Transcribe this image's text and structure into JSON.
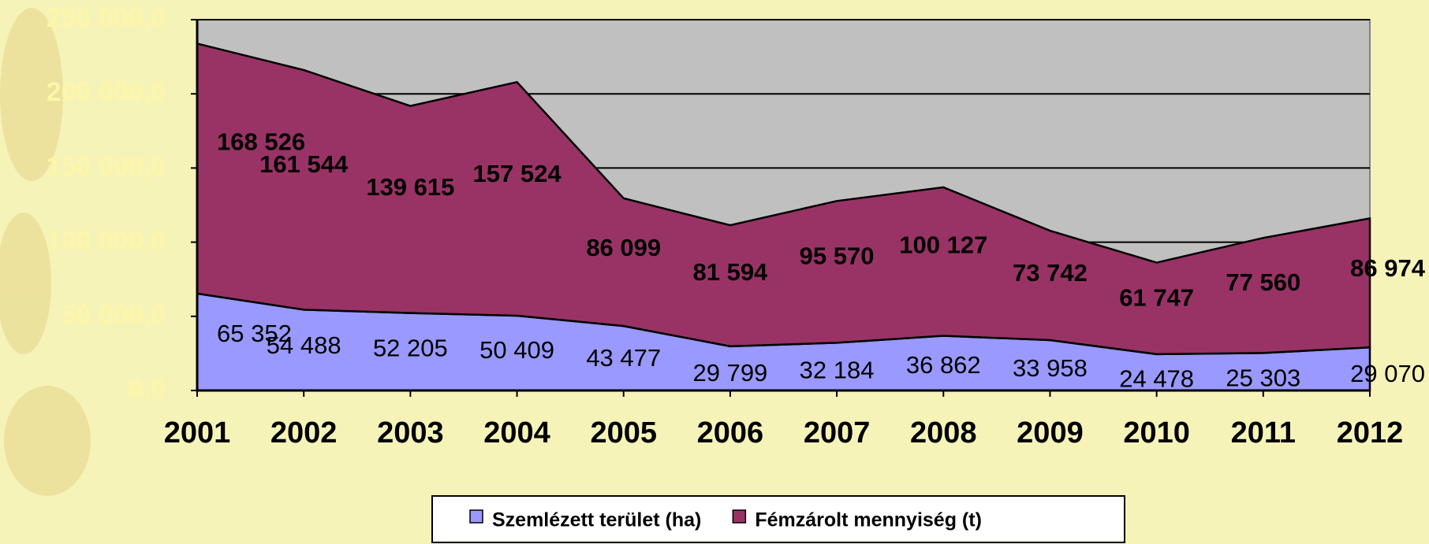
{
  "chart_data": {
    "type": "stacked_area",
    "categories": [
      "2001",
      "2002",
      "2003",
      "2004",
      "2005",
      "2006",
      "2007",
      "2008",
      "2009",
      "2010",
      "2011",
      "2012"
    ],
    "series": [
      {
        "name": "Szemlézett terület (ha)",
        "color": "#9999ff",
        "values": [
          65352,
          54488,
          52205,
          50409,
          43477,
          29799,
          32184,
          36862,
          33958,
          24478,
          25303,
          29070
        ],
        "value_labels": [
          "65 352",
          "54 488",
          "52 205",
          "50 409",
          "43 477",
          "29 799",
          "32 184",
          "36 862",
          "33 958",
          "24 478",
          "25 303",
          "29 070"
        ]
      },
      {
        "name": "Fémzárolt mennyiség (t)",
        "color": "#993366",
        "values": [
          168526,
          161544,
          139615,
          157524,
          86099,
          81594,
          95570,
          100127,
          73742,
          61747,
          77560,
          86974
        ],
        "value_labels": [
          "168 526",
          "161 544",
          "139 615",
          "157 524",
          "86 099",
          "81 594",
          "95 570",
          "100 127",
          "73 742",
          "61 747",
          "77 560",
          "86 974"
        ]
      }
    ],
    "ylim": [
      0,
      250000
    ],
    "yticks": [
      {
        "value": 0,
        "label": "0,0"
      },
      {
        "value": 50000,
        "label": "50 000,0"
      },
      {
        "value": 100000,
        "label": "100 000,0"
      },
      {
        "value": 150000,
        "label": "150 000,0"
      },
      {
        "value": 200000,
        "label": "200 000,0"
      },
      {
        "value": 250000,
        "label": "250 000,0"
      }
    ],
    "grid": true,
    "legend": "bottom",
    "plot_background": "#c0c0c0"
  }
}
